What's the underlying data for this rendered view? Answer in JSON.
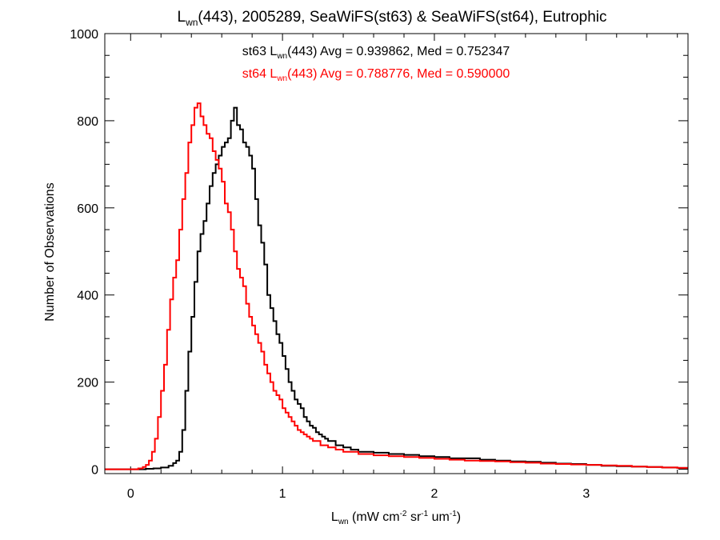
{
  "chart_data": {
    "type": "line",
    "title": {
      "main_prefix": "L",
      "main_sub": "wn",
      "main_suffix": "(443), 2005289, SeaWiFS(st63) & SeaWiFS(st64), Eutrophic"
    },
    "xlabel": {
      "l": "L",
      "l_sub": "wn",
      "part1": " (mW cm",
      "sup1": "-2",
      "part2": " sr",
      "sup2": "-1",
      "part3": " um",
      "sup3": "-1",
      "part4": ")"
    },
    "ylabel": "Number of Observations",
    "xlim": [
      -0.17,
      3.67
    ],
    "ylim": [
      -10,
      1000
    ],
    "x_ticks": [
      0,
      1,
      2,
      3
    ],
    "y_ticks": [
      0,
      200,
      400,
      600,
      800,
      1000
    ],
    "x_tick_labels": [
      "0",
      "1",
      "2",
      "3"
    ],
    "y_tick_labels": [
      "0",
      "200",
      "400",
      "600",
      "800",
      "1000"
    ],
    "grid": false,
    "stats": [
      {
        "series_ref": "st63",
        "prefix": "st63 L",
        "sub": "wn",
        "suffix": "(443) Avg = 0.939862, Med = 0.752347",
        "color": "#000000"
      },
      {
        "series_ref": "st64",
        "prefix": "st64 L",
        "sub": "wn",
        "suffix": "(443) Avg = 0.788776, Med = 0.590000",
        "color": "#ff0000"
      }
    ],
    "series": [
      {
        "id": "st63",
        "color": "#000000",
        "stroke_width": 2,
        "points": [
          [
            -0.17,
            0
          ],
          [
            0.1,
            1
          ],
          [
            0.15,
            2
          ],
          [
            0.2,
            4
          ],
          [
            0.25,
            8
          ],
          [
            0.28,
            14
          ],
          [
            0.3,
            20
          ],
          [
            0.32,
            40
          ],
          [
            0.34,
            90
          ],
          [
            0.36,
            180
          ],
          [
            0.38,
            270
          ],
          [
            0.4,
            350
          ],
          [
            0.42,
            430
          ],
          [
            0.44,
            500
          ],
          [
            0.46,
            540
          ],
          [
            0.48,
            570
          ],
          [
            0.5,
            610
          ],
          [
            0.52,
            650
          ],
          [
            0.54,
            680
          ],
          [
            0.56,
            700
          ],
          [
            0.58,
            720
          ],
          [
            0.6,
            740
          ],
          [
            0.62,
            750
          ],
          [
            0.64,
            760
          ],
          [
            0.66,
            800
          ],
          [
            0.68,
            830
          ],
          [
            0.7,
            790
          ],
          [
            0.72,
            780
          ],
          [
            0.74,
            750
          ],
          [
            0.76,
            740
          ],
          [
            0.78,
            720
          ],
          [
            0.8,
            690
          ],
          [
            0.82,
            620
          ],
          [
            0.84,
            560
          ],
          [
            0.86,
            520
          ],
          [
            0.88,
            470
          ],
          [
            0.9,
            400
          ],
          [
            0.92,
            370
          ],
          [
            0.94,
            340
          ],
          [
            0.96,
            310
          ],
          [
            0.98,
            290
          ],
          [
            1.0,
            260
          ],
          [
            1.02,
            230
          ],
          [
            1.04,
            200
          ],
          [
            1.06,
            180
          ],
          [
            1.08,
            160
          ],
          [
            1.1,
            150
          ],
          [
            1.12,
            140
          ],
          [
            1.14,
            120
          ],
          [
            1.16,
            110
          ],
          [
            1.18,
            100
          ],
          [
            1.2,
            95
          ],
          [
            1.22,
            85
          ],
          [
            1.24,
            80
          ],
          [
            1.26,
            75
          ],
          [
            1.28,
            70
          ],
          [
            1.3,
            65
          ],
          [
            1.35,
            55
          ],
          [
            1.4,
            50
          ],
          [
            1.45,
            45
          ],
          [
            1.5,
            40
          ],
          [
            1.6,
            38
          ],
          [
            1.7,
            35
          ],
          [
            1.8,
            33
          ],
          [
            1.9,
            30
          ],
          [
            2.0,
            28
          ],
          [
            2.1,
            25
          ],
          [
            2.2,
            25
          ],
          [
            2.3,
            22
          ],
          [
            2.4,
            20
          ],
          [
            2.5,
            18
          ],
          [
            2.6,
            17
          ],
          [
            2.7,
            15
          ],
          [
            2.8,
            13
          ],
          [
            2.9,
            12
          ],
          [
            3.0,
            10
          ],
          [
            3.1,
            8
          ],
          [
            3.2,
            7
          ],
          [
            3.3,
            6
          ],
          [
            3.4,
            5
          ],
          [
            3.5,
            4
          ],
          [
            3.6,
            3
          ],
          [
            3.67,
            3
          ]
        ]
      },
      {
        "id": "st64",
        "color": "#ff0000",
        "stroke_width": 2,
        "points": [
          [
            -0.17,
            0
          ],
          [
            0.05,
            2
          ],
          [
            0.08,
            5
          ],
          [
            0.1,
            10
          ],
          [
            0.12,
            20
          ],
          [
            0.14,
            40
          ],
          [
            0.16,
            70
          ],
          [
            0.18,
            120
          ],
          [
            0.2,
            180
          ],
          [
            0.22,
            240
          ],
          [
            0.24,
            320
          ],
          [
            0.26,
            390
          ],
          [
            0.28,
            440
          ],
          [
            0.3,
            480
          ],
          [
            0.32,
            550
          ],
          [
            0.34,
            620
          ],
          [
            0.36,
            680
          ],
          [
            0.38,
            750
          ],
          [
            0.4,
            790
          ],
          [
            0.42,
            830
          ],
          [
            0.44,
            840
          ],
          [
            0.46,
            810
          ],
          [
            0.48,
            790
          ],
          [
            0.5,
            770
          ],
          [
            0.52,
            760
          ],
          [
            0.54,
            730
          ],
          [
            0.56,
            710
          ],
          [
            0.58,
            690
          ],
          [
            0.6,
            660
          ],
          [
            0.62,
            610
          ],
          [
            0.64,
            590
          ],
          [
            0.66,
            550
          ],
          [
            0.68,
            500
          ],
          [
            0.7,
            460
          ],
          [
            0.72,
            440
          ],
          [
            0.74,
            420
          ],
          [
            0.76,
            380
          ],
          [
            0.78,
            350
          ],
          [
            0.8,
            330
          ],
          [
            0.82,
            310
          ],
          [
            0.84,
            290
          ],
          [
            0.86,
            270
          ],
          [
            0.88,
            240
          ],
          [
            0.9,
            220
          ],
          [
            0.92,
            200
          ],
          [
            0.94,
            180
          ],
          [
            0.96,
            170
          ],
          [
            0.98,
            160
          ],
          [
            1.0,
            140
          ],
          [
            1.02,
            130
          ],
          [
            1.04,
            120
          ],
          [
            1.06,
            110
          ],
          [
            1.08,
            100
          ],
          [
            1.1,
            90
          ],
          [
            1.12,
            85
          ],
          [
            1.14,
            80
          ],
          [
            1.16,
            75
          ],
          [
            1.18,
            70
          ],
          [
            1.2,
            65
          ],
          [
            1.25,
            55
          ],
          [
            1.3,
            50
          ],
          [
            1.35,
            45
          ],
          [
            1.4,
            40
          ],
          [
            1.5,
            35
          ],
          [
            1.6,
            32
          ],
          [
            1.7,
            30
          ],
          [
            1.8,
            28
          ],
          [
            1.9,
            26
          ],
          [
            2.0,
            24
          ],
          [
            2.1,
            22
          ],
          [
            2.2,
            20
          ],
          [
            2.3,
            19
          ],
          [
            2.4,
            18
          ],
          [
            2.5,
            16
          ],
          [
            2.6,
            15
          ],
          [
            2.7,
            13
          ],
          [
            2.8,
            12
          ],
          [
            2.9,
            11
          ],
          [
            3.0,
            10
          ],
          [
            3.1,
            9
          ],
          [
            3.2,
            8
          ],
          [
            3.3,
            6
          ],
          [
            3.4,
            5
          ],
          [
            3.5,
            4
          ],
          [
            3.6,
            3
          ],
          [
            3.67,
            3
          ]
        ]
      }
    ]
  }
}
